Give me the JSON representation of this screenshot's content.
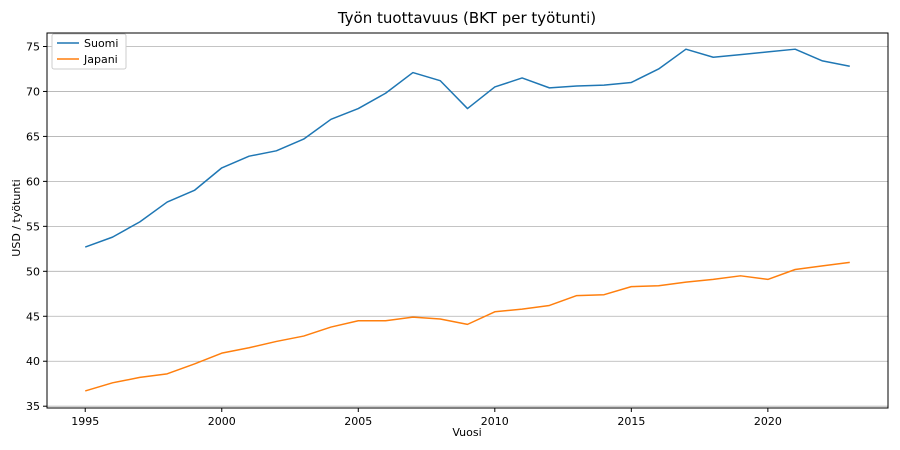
{
  "chart_data": {
    "type": "line",
    "title": "Työn tuottavuus (BKT per työtunti)",
    "xlabel": "Vuosi",
    "ylabel": "USD / työtunti",
    "x": [
      1995,
      1996,
      1997,
      1998,
      1999,
      2000,
      2001,
      2002,
      2003,
      2004,
      2005,
      2006,
      2007,
      2008,
      2009,
      2010,
      2011,
      2012,
      2013,
      2014,
      2015,
      2016,
      2017,
      2018,
      2019,
      2020,
      2021,
      2022,
      2023
    ],
    "xticks": [
      "1995",
      "2000",
      "2005",
      "2010",
      "2015",
      "2020"
    ],
    "yticks": [
      "35",
      "40",
      "45",
      "50",
      "55",
      "60",
      "65",
      "70",
      "75"
    ],
    "xlim": [
      1993.6,
      2024.4
    ],
    "ylim": [
      34.8,
      76.5
    ],
    "grid": "horizontal",
    "legend": "top-left",
    "series": [
      {
        "name": "Suomi",
        "color": "#1f77b4",
        "values": [
          52.7,
          53.8,
          55.5,
          57.7,
          59.0,
          61.5,
          62.8,
          63.4,
          64.7,
          66.9,
          68.1,
          69.8,
          72.1,
          71.2,
          68.1,
          70.5,
          71.5,
          70.4,
          70.6,
          70.7,
          71.0,
          72.5,
          74.7,
          73.8,
          74.1,
          74.4,
          74.7,
          73.4,
          72.8
        ]
      },
      {
        "name": "Japani",
        "color": "#ff7f0e",
        "values": [
          36.7,
          37.6,
          38.2,
          38.6,
          39.7,
          40.9,
          41.5,
          42.2,
          42.8,
          43.8,
          44.5,
          44.5,
          44.9,
          44.7,
          44.1,
          45.5,
          45.8,
          46.2,
          47.3,
          47.4,
          48.3,
          48.4,
          48.8,
          49.1,
          49.5,
          49.1,
          50.2,
          50.6,
          51.0
        ]
      }
    ]
  }
}
